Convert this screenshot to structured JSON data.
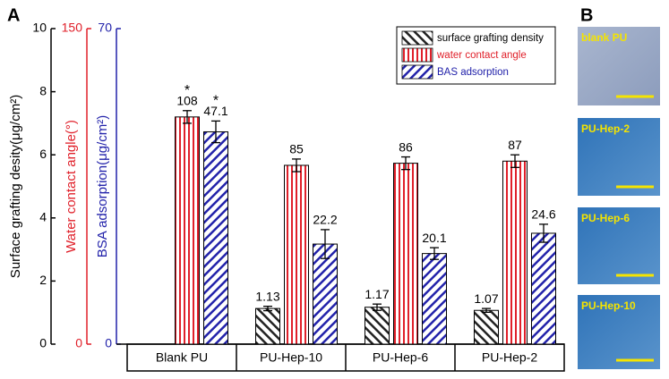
{
  "chart_data": {
    "type": "bar",
    "panel_label": "A",
    "categories": [
      "Blank PU",
      "PU-Hep-10",
      "PU-Hep-6",
      "PU-Hep-2"
    ],
    "ylabel": "Surface grafting desity(μg/cm²)",
    "y2label": "Water contact angle(°)",
    "y3label": "BSA adsorption(μg/cm²)",
    "ylim": [
      0,
      10
    ],
    "yticks": [
      0,
      2,
      4,
      6,
      8,
      10
    ],
    "y2lim": [
      0,
      150
    ],
    "y2ticks": [
      0,
      150
    ],
    "y3lim": [
      0,
      70
    ],
    "y3ticks": [
      0,
      70
    ],
    "series": [
      {
        "name": "surface grafting density",
        "color": "#000000",
        "axis": "y",
        "values": [
          null,
          1.13,
          1.17,
          1.07
        ],
        "errors": [
          null,
          0.07,
          0.1,
          0.06
        ]
      },
      {
        "name": "water contact angle",
        "color": "#e0202a",
        "axis": "y2",
        "values": [
          108,
          85,
          86,
          87
        ],
        "errors": [
          3,
          3,
          3,
          3
        ]
      },
      {
        "name": "BAS adsorption",
        "color": "#2222aa",
        "axis": "y3",
        "values": [
          47.1,
          22.2,
          20.1,
          24.6
        ],
        "errors": [
          2.4,
          3.2,
          1.3,
          2
        ]
      }
    ],
    "annotations": [
      "*",
      "*"
    ]
  },
  "image_panel": {
    "label": "B",
    "images": [
      "blank PU",
      "PU-Hep-2",
      "PU-Hep-6",
      "PU-Hep-10"
    ]
  }
}
